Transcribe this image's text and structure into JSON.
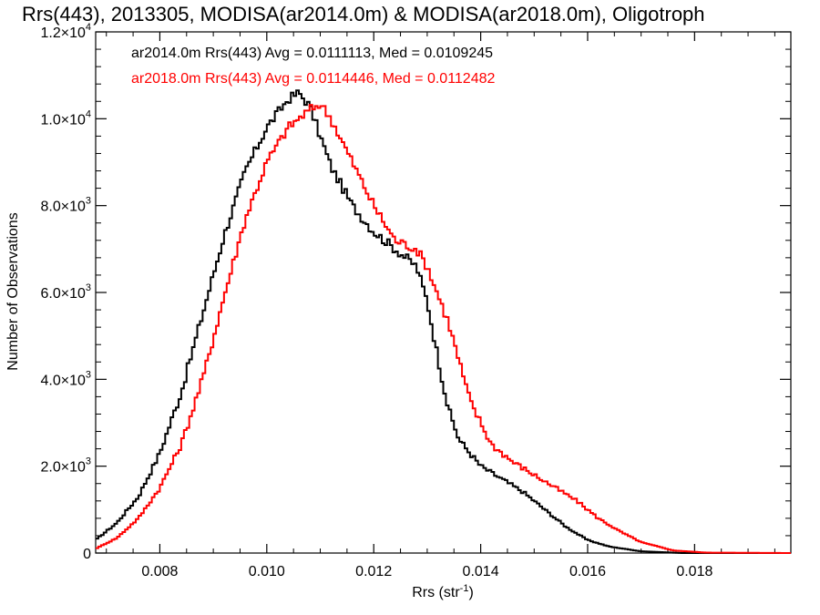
{
  "chart_data": {
    "type": "line",
    "title": "Rrs(443), 2013305, MODISA(ar2014.0m) & MODISA(ar2018.0m), Oligotroph",
    "xlabel": "Rrs (str",
    "xlabel_sup": "-1",
    "xlabel_close": ")",
    "ylabel": "Number of Observations",
    "xlim": [
      0.0068,
      0.0198
    ],
    "ylim": [
      0,
      12000
    ],
    "x_ticks": [
      {
        "value": 0.008,
        "label": "0.008"
      },
      {
        "value": 0.01,
        "label": "0.010"
      },
      {
        "value": 0.012,
        "label": "0.012"
      },
      {
        "value": 0.014,
        "label": "0.014"
      },
      {
        "value": 0.016,
        "label": "0.016"
      },
      {
        "value": 0.018,
        "label": "0.018"
      }
    ],
    "y_ticks": [
      {
        "value": 0,
        "label": "0",
        "exp": ""
      },
      {
        "value": 2000,
        "label": "2.0×10",
        "exp": "3"
      },
      {
        "value": 4000,
        "label": "4.0×10",
        "exp": "3"
      },
      {
        "value": 6000,
        "label": "6.0×10",
        "exp": "3"
      },
      {
        "value": 8000,
        "label": "8.0×10",
        "exp": "3"
      },
      {
        "value": 10000,
        "label": "1.0×10",
        "exp": "4"
      },
      {
        "value": 12000,
        "label": "1.2×10",
        "exp": "4"
      }
    ],
    "grid": false,
    "legend_position": "top-left",
    "series": [
      {
        "name": "ar2014.0m Rrs(443) Avg = 0.0111113, Med = 0.0109245",
        "color": "#000000",
        "points": [
          [
            0.0068,
            300
          ],
          [
            0.0072,
            700
          ],
          [
            0.0076,
            1300
          ],
          [
            0.008,
            2300
          ],
          [
            0.0084,
            3700
          ],
          [
            0.0088,
            5500
          ],
          [
            0.0092,
            7300
          ],
          [
            0.0096,
            8800
          ],
          [
            0.01,
            9800
          ],
          [
            0.0104,
            10450
          ],
          [
            0.0106,
            10600
          ],
          [
            0.0108,
            10300
          ],
          [
            0.011,
            9600
          ],
          [
            0.0112,
            8900
          ],
          [
            0.0116,
            8000
          ],
          [
            0.012,
            7400
          ],
          [
            0.0124,
            7000
          ],
          [
            0.0128,
            6600
          ],
          [
            0.013,
            5800
          ],
          [
            0.0132,
            4500
          ],
          [
            0.0134,
            3300
          ],
          [
            0.0136,
            2600
          ],
          [
            0.014,
            2000
          ],
          [
            0.0144,
            1700
          ],
          [
            0.0148,
            1400
          ],
          [
            0.0152,
            1000
          ],
          [
            0.0156,
            600
          ],
          [
            0.016,
            300
          ],
          [
            0.0164,
            150
          ],
          [
            0.017,
            40
          ],
          [
            0.0178,
            0
          ],
          [
            0.0198,
            0
          ]
        ]
      },
      {
        "name": "ar2018.0m Rrs(443) Avg = 0.0114446, Med = 0.0112482",
        "color": "#ff0000",
        "points": [
          [
            0.0068,
            100
          ],
          [
            0.0072,
            350
          ],
          [
            0.0076,
            800
          ],
          [
            0.008,
            1500
          ],
          [
            0.0084,
            2500
          ],
          [
            0.0088,
            4000
          ],
          [
            0.0092,
            5900
          ],
          [
            0.0096,
            7700
          ],
          [
            0.01,
            9000
          ],
          [
            0.0104,
            9800
          ],
          [
            0.0108,
            10200
          ],
          [
            0.011,
            10350
          ],
          [
            0.0112,
            10000
          ],
          [
            0.0116,
            9000
          ],
          [
            0.012,
            8000
          ],
          [
            0.0124,
            7200
          ],
          [
            0.0128,
            7000
          ],
          [
            0.013,
            6600
          ],
          [
            0.0134,
            5300
          ],
          [
            0.0138,
            3500
          ],
          [
            0.0142,
            2500
          ],
          [
            0.0146,
            2100
          ],
          [
            0.015,
            1800
          ],
          [
            0.0154,
            1500
          ],
          [
            0.0158,
            1200
          ],
          [
            0.0162,
            800
          ],
          [
            0.0166,
            500
          ],
          [
            0.017,
            250
          ],
          [
            0.0176,
            60
          ],
          [
            0.0182,
            10
          ],
          [
            0.0198,
            0
          ]
        ]
      }
    ]
  }
}
